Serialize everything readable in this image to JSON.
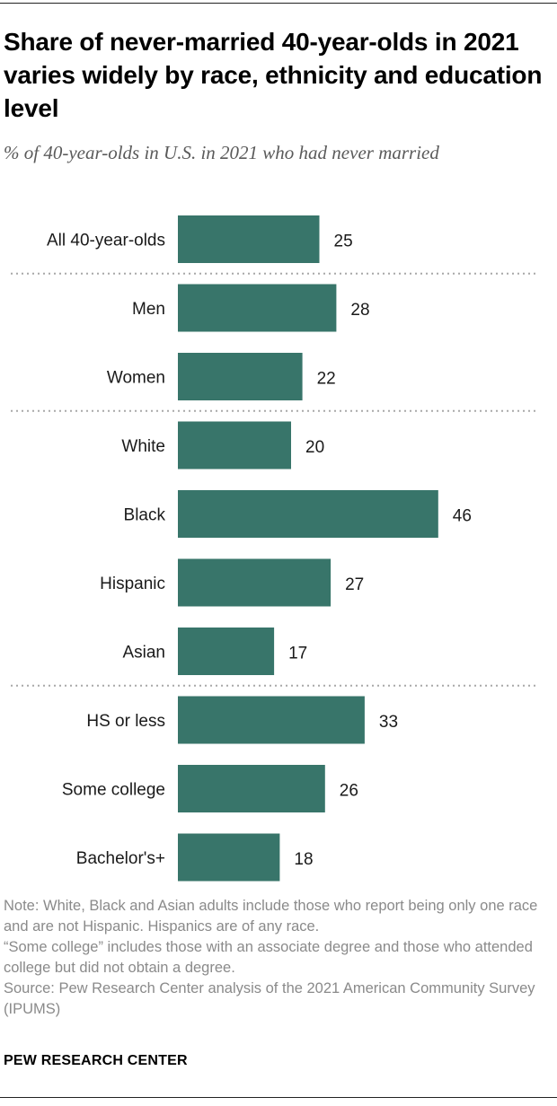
{
  "chart_data": {
    "type": "bar",
    "orientation": "horizontal",
    "title": "Share of never-married 40-year-olds in 2021 varies widely by race, ethnicity and education level",
    "subtitle": "% of 40-year-olds in U.S. in 2021 who had never married",
    "categories": [
      "All 40-year-olds",
      "Men",
      "Women",
      "White",
      "Black",
      "Hispanic",
      "Asian",
      "HS or less",
      "Some college",
      "Bachelor's+"
    ],
    "values": [
      25,
      28,
      22,
      20,
      46,
      27,
      17,
      33,
      26,
      18
    ],
    "groups": [
      [
        "All 40-year-olds"
      ],
      [
        "Men",
        "Women"
      ],
      [
        "White",
        "Black",
        "Hispanic",
        "Asian"
      ],
      [
        "HS or less",
        "Some college",
        "Bachelor's+"
      ]
    ],
    "xlabel": "",
    "ylabel": "",
    "xlim": [
      0,
      50
    ],
    "grid": false,
    "bar_color": "#38756a"
  },
  "notes": {
    "note_line1": "Note: White, Black and Asian adults include those who report being only one race and are not Hispanic. Hispanics are of any race.",
    "note_line2": "“Some college” includes those with an associate degree and those who attended college but did not obtain a degree.",
    "source": "Source: Pew Research Center analysis of the 2021 American Community Survey (IPUMS)"
  },
  "branding": {
    "label": "PEW RESEARCH CENTER"
  }
}
